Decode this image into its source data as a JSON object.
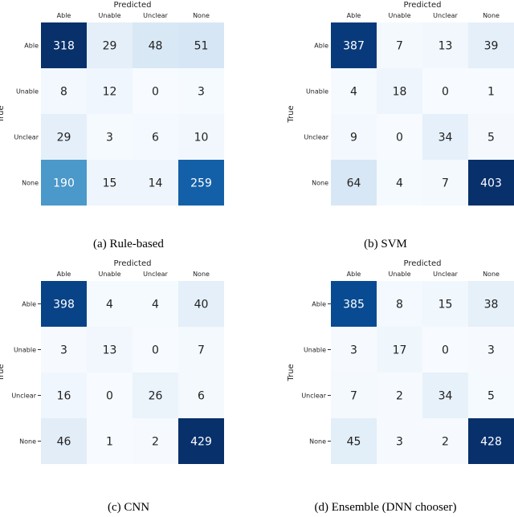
{
  "chart_data": [
    {
      "type": "heatmap",
      "caption": "(a) Rule-based",
      "xlabel": "Predicted",
      "ylabel": "True",
      "categories": [
        "Able",
        "Unable",
        "Unclear",
        "None"
      ],
      "colormap": "Blues",
      "values": [
        [
          318,
          29,
          48,
          51
        ],
        [
          8,
          12,
          0,
          3
        ],
        [
          29,
          3,
          6,
          10
        ],
        [
          190,
          15,
          14,
          259
        ]
      ]
    },
    {
      "type": "heatmap",
      "caption": "(b) SVM",
      "xlabel": "Predicted",
      "ylabel": "True",
      "categories": [
        "Able",
        "Unable",
        "Unclear",
        "None"
      ],
      "colormap": "Blues",
      "values": [
        [
          387,
          7,
          13,
          39
        ],
        [
          4,
          18,
          0,
          1
        ],
        [
          9,
          0,
          34,
          5
        ],
        [
          64,
          4,
          7,
          403
        ]
      ]
    },
    {
      "type": "heatmap",
      "caption": "(c) CNN",
      "xlabel": "Predicted",
      "ylabel": "True",
      "categories": [
        "Able",
        "Unable",
        "Unclear",
        "None"
      ],
      "colormap": "Blues",
      "values": [
        [
          398,
          4,
          4,
          40
        ],
        [
          3,
          13,
          0,
          7
        ],
        [
          16,
          0,
          26,
          6
        ],
        [
          46,
          1,
          2,
          429
        ]
      ]
    },
    {
      "type": "heatmap",
      "caption": "(d) Ensemble (DNN chooser)",
      "xlabel": "Predicted",
      "ylabel": "True",
      "categories": [
        "Able",
        "Unable",
        "Unclear",
        "None"
      ],
      "colormap": "Blues",
      "values": [
        [
          385,
          8,
          15,
          38
        ],
        [
          3,
          17,
          0,
          3
        ],
        [
          7,
          2,
          34,
          5
        ],
        [
          45,
          3,
          2,
          428
        ]
      ]
    }
  ]
}
